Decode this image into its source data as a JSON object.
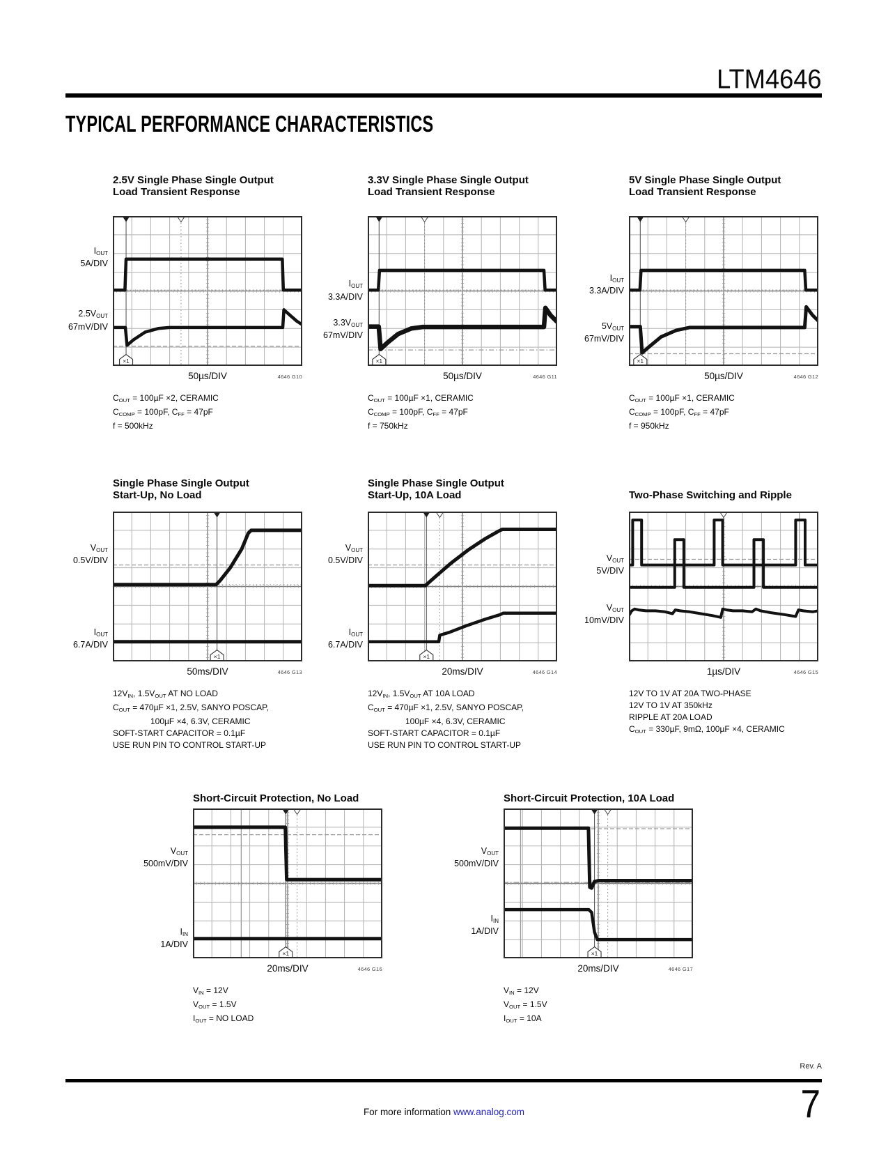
{
  "page": {
    "part_number": "LTM4646",
    "section_title": "TYPICAL PERFORMANCE CHARACTERISTICS"
  },
  "footer": {
    "rev": "Rev. A",
    "page_number": "7",
    "info_text": "For more information ",
    "info_link": "www.analog.com"
  },
  "colors": {
    "link_blue": "#2222CC",
    "trace_black": "#121212",
    "grid_gray": "#B2B2B2",
    "ref_dash_gray": "#9A9A9A"
  },
  "chart_data": [
    {
      "type": "line",
      "title_lines": [
        "2.5V Single Phase Single Output",
        "Load Transient Response"
      ],
      "ylabels": [
        {
          "l1": "I~OUT~",
          "l2": "5A/DIV"
        },
        {
          "l1": "2.5V~OUT~",
          "l2": "67mV/DIV"
        }
      ],
      "xlabel": "50µs/DIV",
      "fig_id": "4646 G10",
      "notes": [
        "C~OUT~ = 100µF ×2, CERAMIC",
        "C~COMP~ = 100pF, C~FF~ = 47pF",
        "f = 500kHz"
      ],
      "grid": {
        "cols": 10,
        "rows": 8
      },
      "traces": [
        {
          "name": "iout",
          "width": 4.5,
          "points": [
            [
              0,
              3.95
            ],
            [
              0.64,
              3.95
            ],
            [
              0.7,
              2.3
            ],
            [
              8.95,
              2.3
            ],
            [
              9.0,
              3.95
            ],
            [
              10,
              3.95
            ]
          ]
        },
        {
          "name": "vout",
          "width": 4.5,
          "points": [
            [
              0,
              5.95
            ],
            [
              0.66,
              5.95
            ],
            [
              0.75,
              6.9
            ],
            [
              1.1,
              6.6
            ],
            [
              1.7,
              6.2
            ],
            [
              2.4,
              6.0
            ],
            [
              3.0,
              5.95
            ],
            [
              8.97,
              5.95
            ],
            [
              9.03,
              5.0
            ],
            [
              9.3,
              5.25
            ],
            [
              9.7,
              5.6
            ],
            [
              10,
              5.8
            ]
          ]
        }
      ],
      "dashed_h": [
        6.95
      ],
      "dashdot_h": [],
      "dotted_h": [
        3.95
      ],
      "cursor_v": [],
      "trigger_x": 0.7,
      "marker2_x": 3.6,
      "x1": true
    },
    {
      "type": "line",
      "title_lines": [
        "3.3V Single Phase Single Output",
        "Load Transient Response"
      ],
      "ylabels": [
        {
          "l1": "I~OUT~",
          "l2": "3.3A/DIV"
        },
        {
          "l1": "3.3V~OUT~",
          "l2": "67mV/DIV"
        }
      ],
      "xlabel": "50µs/DIV",
      "fig_id": "4646 G11",
      "notes": [
        "C~OUT~ = 100µF ×1, CERAMIC",
        "C~COMP~ = 100pF,  C~FF~ = 47pF",
        "f = 750kHz"
      ],
      "grid": {
        "cols": 10,
        "rows": 8
      },
      "traces": [
        {
          "name": "iout",
          "width": 4.5,
          "points": [
            [
              0,
              3.95
            ],
            [
              0.56,
              3.95
            ],
            [
              0.62,
              2.9
            ],
            [
              9.3,
              2.9
            ],
            [
              9.36,
              3.95
            ],
            [
              10,
              3.95
            ]
          ]
        },
        {
          "name": "vout",
          "width": 6.5,
          "points": [
            [
              0,
              5.9
            ],
            [
              0.58,
              5.9
            ],
            [
              0.68,
              7.1
            ],
            [
              1.05,
              6.75
            ],
            [
              1.6,
              6.3
            ],
            [
              2.3,
              6.0
            ],
            [
              2.9,
              5.92
            ],
            [
              9.3,
              5.92
            ],
            [
              9.38,
              4.9
            ],
            [
              9.65,
              5.3
            ],
            [
              10,
              5.65
            ]
          ]
        }
      ],
      "dashed_h": [],
      "dashdot_h": [
        7.15
      ],
      "dotted_h": [
        3.95
      ],
      "cursor_v": [],
      "trigger_x": 0.6,
      "marker2_x": 3.0,
      "x1": true
    },
    {
      "type": "line",
      "title_lines": [
        "5V Single Phase Single Output",
        "Load Transient Response"
      ],
      "ylabels": [
        {
          "l1": "I~OUT~",
          "l2": "3.3A/DIV"
        },
        {
          "l1": "5V~OUT~",
          "l2": "67mV/DIV"
        }
      ],
      "xlabel": "50µs/DIV",
      "fig_id": "4646 G12",
      "notes": [
        "C~OUT~ = 100µF ×1, CERAMIC",
        "C~COMP~ = 100pF, C~FF~ = 47pF",
        "f = 950kHz"
      ],
      "grid": {
        "cols": 10,
        "rows": 8
      },
      "traces": [
        {
          "name": "iout",
          "width": 4.5,
          "points": [
            [
              0,
              3.95
            ],
            [
              0.58,
              3.95
            ],
            [
              0.64,
              2.9
            ],
            [
              9.28,
              2.9
            ],
            [
              9.34,
              3.95
            ],
            [
              10,
              3.95
            ]
          ]
        },
        {
          "name": "vout",
          "width": 5,
          "points": [
            [
              0,
              5.9
            ],
            [
              0.6,
              5.9
            ],
            [
              0.7,
              7.3
            ],
            [
              1.1,
              6.95
            ],
            [
              1.7,
              6.45
            ],
            [
              2.5,
              6.1
            ],
            [
              3.2,
              5.95
            ],
            [
              9.28,
              5.95
            ],
            [
              9.36,
              4.85
            ],
            [
              9.7,
              5.3
            ],
            [
              10,
              5.6
            ]
          ]
        }
      ],
      "dashed_h": [
        7.35
      ],
      "dashdot_h": [],
      "dotted_h": [
        3.95
      ],
      "cursor_v": [],
      "trigger_x": 0.6,
      "marker2_x": 3.0,
      "x1": true
    },
    {
      "type": "line",
      "title_lines": [
        "Single Phase Single Output",
        "Start-Up, No Load"
      ],
      "ylabels": [
        {
          "l1": "V~OUT~",
          "l2": "0.5V/DIV"
        },
        {
          "l1": "I~OUT~",
          "l2": "6.7A/DIV"
        }
      ],
      "xlabel": "50ms/DIV",
      "fig_id": "4646 G13",
      "notes": [
        "12V~IN~, 1.5V~OUT~ AT NO LOAD",
        "C~OUT~ = 470µF  ×1, 2.5V, SANYO POSCAP,",
        "100µF ×4, 6.3V, CERAMIC",
        "SOFT-START CAPACITOR = 0.1µF",
        "USE RUN PIN TO CONTROL START-UP"
      ],
      "grid": {
        "cols": 10,
        "rows": 8
      },
      "traces": [
        {
          "name": "vout",
          "width": 5,
          "points": [
            [
              0,
              3.9
            ],
            [
              5.45,
              3.9
            ],
            [
              5.65,
              3.7
            ],
            [
              6.2,
              3.0
            ],
            [
              6.8,
              2.0
            ],
            [
              7.15,
              1.15
            ],
            [
              7.3,
              1.0
            ],
            [
              10,
              1.0
            ]
          ]
        },
        {
          "name": "iout",
          "width": 5,
          "points": [
            [
              0,
              6.95
            ],
            [
              10,
              6.95
            ]
          ]
        }
      ],
      "dashed_h": [
        2.85
      ],
      "dashdot_h": [],
      "dotted_h": [
        3.9
      ],
      "cursor_v": [],
      "trigger_x": 5.5,
      "marker2_x": null,
      "x1": true
    },
    {
      "type": "line",
      "title_lines": [
        "Single Phase Single Output",
        "Start-Up, 10A Load"
      ],
      "ylabels": [
        {
          "l1": "V~OUT~",
          "l2": "0.5V/DIV"
        },
        {
          "l1": "I~OUT~",
          "l2": "6.7A/DIV"
        }
      ],
      "xlabel": "20ms/DIV",
      "fig_id": "4646 G14",
      "notes": [
        "12V~IN~, 1.5V~OUT~ AT 10A LOAD",
        "C~OUT~ = 470µF ×1, 2.5V, SANYO POSCAP,",
        "100µF ×4, 6.3V, CERAMIC",
        "SOFT-START CAPACITOR = 0.1µF",
        "USE RUN PIN TO CONTROL START-UP"
      ],
      "grid": {
        "cols": 10,
        "rows": 8
      },
      "traces": [
        {
          "name": "vout",
          "width": 5,
          "points": [
            [
              0,
              3.95
            ],
            [
              3.05,
              3.95
            ],
            [
              3.15,
              3.85
            ],
            [
              3.6,
              3.45
            ],
            [
              4.4,
              2.75
            ],
            [
              5.3,
              2.05
            ],
            [
              6.2,
              1.45
            ],
            [
              6.9,
              1.05
            ],
            [
              7.1,
              0.95
            ],
            [
              10,
              0.95
            ]
          ]
        },
        {
          "name": "iout",
          "width": 4.5,
          "points": [
            [
              0,
              6.95
            ],
            [
              3.75,
              6.95
            ],
            [
              3.8,
              6.6
            ],
            [
              4.3,
              6.45
            ],
            [
              5.2,
              6.1
            ],
            [
              6.2,
              5.75
            ],
            [
              7.0,
              5.5
            ],
            [
              7.15,
              5.42
            ],
            [
              10,
              5.42
            ]
          ]
        }
      ],
      "dashed_h": [
        2.85
      ],
      "dashdot_h": [],
      "dotted_h": [
        3.98
      ],
      "cursor_v": [],
      "trigger_x": 3.1,
      "marker2_x": 3.8,
      "x1": true
    },
    {
      "type": "line",
      "title_lines": [
        "Two-Phase Switching and Ripple"
      ],
      "ylabels": [
        {
          "l1": "V~OUT~",
          "l2": "5V/DIV"
        },
        {
          "l1": "V~OUT~",
          "l2": "10mV/DIV"
        }
      ],
      "xlabel": "1µs/DIV",
      "fig_id": "4646 G15",
      "notes": [
        "12V TO 1V AT 20A TWO-PHASE",
        "12V TO 1V AT 350kHz",
        "RIPPLE AT 20A LOAD",
        "C~OUT~ = 330µF, 9mΩ, 100µF ×4, CERAMIC"
      ],
      "grid": {
        "cols": 10,
        "rows": 8
      },
      "traces": [
        {
          "name": "sw-phase-a",
          "width": 4,
          "points": [
            [
              0,
              2.85
            ],
            [
              0.2,
              2.85
            ],
            [
              0.2,
              0.45
            ],
            [
              0.67,
              0.45
            ],
            [
              0.67,
              2.85
            ],
            [
              4.5,
              2.85
            ],
            [
              4.5,
              0.45
            ],
            [
              4.95,
              0.45
            ],
            [
              4.95,
              2.85
            ],
            [
              8.8,
              2.85
            ],
            [
              8.8,
              0.45
            ],
            [
              9.3,
              0.45
            ],
            [
              9.3,
              2.85
            ],
            [
              10,
              2.85
            ]
          ]
        },
        {
          "name": "sw-phase-b",
          "width": 4,
          "points": [
            [
              0,
              4.05
            ],
            [
              2.42,
              4.05
            ],
            [
              2.42,
              1.5
            ],
            [
              2.9,
              1.5
            ],
            [
              2.9,
              4.05
            ],
            [
              6.6,
              4.05
            ],
            [
              6.6,
              1.5
            ],
            [
              7.1,
              1.5
            ],
            [
              7.1,
              4.05
            ],
            [
              10,
              4.05
            ]
          ]
        },
        {
          "name": "ripple",
          "width": 4,
          "points": [
            [
              0,
              5.55
            ],
            [
              0.15,
              5.3
            ],
            [
              0.3,
              5.2
            ],
            [
              0.5,
              5.25
            ],
            [
              0.9,
              5.3
            ],
            [
              1.4,
              5.3
            ],
            [
              1.9,
              5.35
            ],
            [
              2.3,
              5.45
            ],
            [
              2.45,
              5.25
            ],
            [
              2.7,
              5.3
            ],
            [
              3.2,
              5.35
            ],
            [
              3.8,
              5.45
            ],
            [
              4.4,
              5.55
            ],
            [
              4.85,
              5.65
            ],
            [
              4.95,
              5.2
            ],
            [
              5.15,
              5.25
            ],
            [
              5.5,
              5.3
            ],
            [
              6.0,
              5.3
            ],
            [
              6.5,
              5.35
            ],
            [
              6.7,
              5.2
            ],
            [
              6.95,
              5.3
            ],
            [
              7.5,
              5.4
            ],
            [
              8.2,
              5.5
            ],
            [
              8.8,
              5.6
            ],
            [
              8.95,
              5.25
            ],
            [
              9.2,
              5.3
            ],
            [
              9.7,
              5.35
            ],
            [
              10,
              5.3
            ]
          ]
        }
      ],
      "dashed_h": [
        2.55
      ],
      "dashdot_h": [],
      "dotted_h": [],
      "cursor_v": [
        9.0
      ],
      "trigger_x": null,
      "marker2_x": 5.0,
      "x1": false
    },
    {
      "type": "line",
      "title_lines": [
        "Short-Circuit Protection, No Load"
      ],
      "ylabels": [
        {
          "l1": "V~OUT~",
          "l2": "500mV/DIV"
        },
        {
          "l1": "I~IN~",
          "l2": "1A/DIV"
        }
      ],
      "xlabel": "20ms/DIV",
      "fig_id": "4646 G16",
      "notes": [
        "V~IN~ = 12V",
        "V~OUT~ = 1.5V",
        "I~OUT~ =  NO LOAD"
      ],
      "grid": {
        "cols": 10,
        "rows": 8
      },
      "traces": [
        {
          "name": "vout",
          "width": 5,
          "points": [
            [
              0,
              1.0
            ],
            [
              4.88,
              1.0
            ],
            [
              4.95,
              3.8
            ],
            [
              10,
              3.8
            ]
          ]
        },
        {
          "name": "iin",
          "width": 5,
          "points": [
            [
              0,
              6.95
            ],
            [
              10,
              6.95
            ]
          ]
        }
      ],
      "dashed_h": [
        1.4
      ],
      "dashdot_h": [
        4.0
      ],
      "dotted_h": [],
      "cursor_v": [
        2.55
      ],
      "trigger_x": 4.9,
      "marker2_x": 5.5,
      "x1": true
    },
    {
      "type": "line",
      "title_lines": [
        "Short-Circuit Protection, 10A Load"
      ],
      "ylabels": [
        {
          "l1": "V~OUT~",
          "l2": "500mV/DIV"
        },
        {
          "l1": "I~IN~",
          "l2": "1A/DIV"
        }
      ],
      "xlabel": "20ms/DIV",
      "fig_id": "4646 G17",
      "notes": [
        "V~IN~ = 12V",
        "V~OUT~ = 1.5V",
        "I~OUT~ =  10A"
      ],
      "grid": {
        "cols": 10,
        "rows": 8
      },
      "traces": [
        {
          "name": "vout",
          "width": 5,
          "points": [
            [
              0,
              1.05
            ],
            [
              4.48,
              1.05
            ],
            [
              4.55,
              4.2
            ],
            [
              4.65,
              4.25
            ],
            [
              4.8,
              3.9
            ],
            [
              5.0,
              3.85
            ],
            [
              10,
              3.85
            ]
          ]
        },
        {
          "name": "iin",
          "width": 4.5,
          "points": [
            [
              0,
              5.4
            ],
            [
              4.5,
              5.4
            ],
            [
              4.65,
              5.55
            ],
            [
              4.8,
              6.6
            ],
            [
              4.95,
              7.0
            ],
            [
              10,
              7.0
            ]
          ]
        }
      ],
      "dashed_h": [
        1.08
      ],
      "dashdot_h": [
        3.95
      ],
      "dotted_h": [],
      "cursor_v": [
        0.9
      ],
      "trigger_x": 4.8,
      "marker2_x": 5.5,
      "x1": true
    }
  ]
}
